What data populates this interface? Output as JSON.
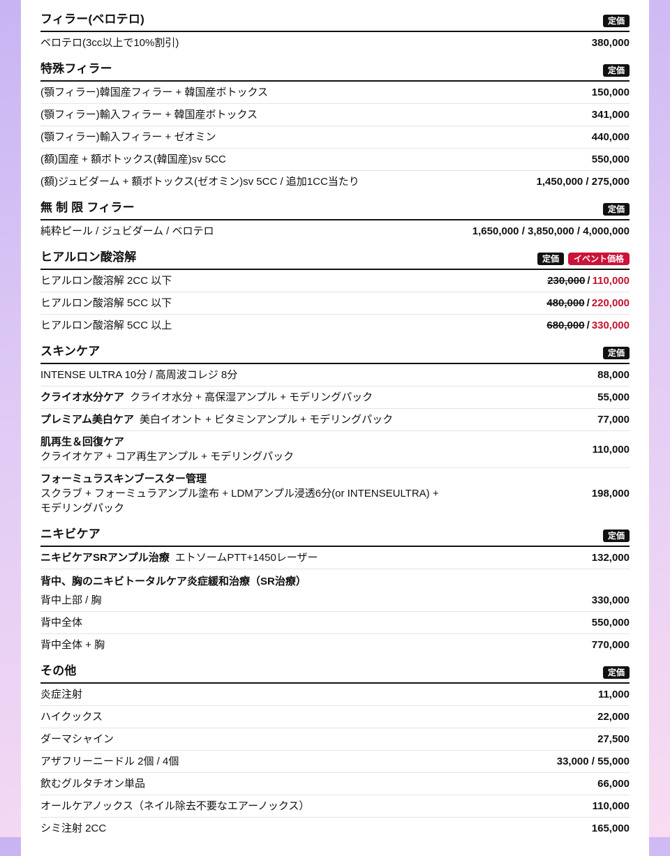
{
  "labels": {
    "price_separator": "/"
  },
  "colors": {
    "text": "#111111",
    "panel_bg": "#ffffff",
    "header_rule": "#111111",
    "row_divider": "#e4e4e4",
    "badge_black_bg": "#111111",
    "badge_red_bg": "#cb1238",
    "event_price": "#c41230",
    "page_gradient_top": "#c8b4f3",
    "page_gradient_bottom": "#f9dcf2"
  },
  "sections": [
    {
      "title": "フィラー(ベロテロ)",
      "badges": [
        {
          "label": "定価",
          "style": "black"
        }
      ],
      "rows": [
        {
          "label": "ベロテロ(3cc以上で10%割引)",
          "price": "380,000"
        }
      ]
    },
    {
      "title": "特殊フィラー",
      "badges": [
        {
          "label": "定価",
          "style": "black"
        }
      ],
      "rows": [
        {
          "label": "(顎フィラー)韓国産フィラー + 韓国産ボトックス",
          "price": "150,000"
        },
        {
          "label": "(顎フィラー)輸入フィラー + 韓国産ボトックス",
          "price": "341,000"
        },
        {
          "label": "(顎フィラー)輸入フィラー + ゼオミン",
          "price": "440,000"
        },
        {
          "label": "(額)国産 + 額ボトックス(韓国産)sv 5CC",
          "price": "550,000"
        },
        {
          "label": "(額)ジュビダーム + 額ボトックス(ゼオミン)sv 5CC / 追加1CC当たり",
          "price": "1,450,000 / 275,000"
        }
      ]
    },
    {
      "title": "無 制 限 フィラー",
      "badges": [
        {
          "label": "定価",
          "style": "black"
        }
      ],
      "rows": [
        {
          "label": "純粋ピール / ジュビダーム / ベロテロ",
          "price": "1,650,000 / 3,850,000 / 4,000,000"
        }
      ]
    },
    {
      "title": "ヒアルロン酸溶解",
      "badges": [
        {
          "label": "定価",
          "style": "black"
        },
        {
          "label": "イベント価格",
          "style": "red"
        }
      ],
      "rows": [
        {
          "label": "ヒアルロン酸溶解 2CC 以下",
          "old_price": "230,000",
          "event_price": "110,000"
        },
        {
          "label": "ヒアルロン酸溶解 5CC 以下",
          "old_price": "480,000",
          "event_price": "220,000"
        },
        {
          "label": "ヒアルロン酸溶解 5CC 以上",
          "old_price": "680,000",
          "event_price": "330,000"
        }
      ]
    },
    {
      "title": "スキンケア",
      "badges": [
        {
          "label": "定価",
          "style": "black"
        }
      ],
      "rows": [
        {
          "label": "INTENSE ULTRA 10分 / 高周波コレジ 8分",
          "price": "88,000"
        },
        {
          "bold": "クライオ水分ケア",
          "label": "クライオ水分 + 高保湿アンプル + モデリングパック",
          "price": "55,000"
        },
        {
          "bold": "プレミアム美白ケア",
          "label": "美白イオント + ビタミンアンプル + モデリングパック",
          "price": "77,000"
        },
        {
          "bold": "肌再生＆回復ケア",
          "sublines": [
            "クライオケア + コア再生アンプル + モデリングパック"
          ],
          "price": "110,000"
        },
        {
          "bold": "フォーミュラスキンブースター管理",
          "sublines": [
            "スクラブ + フォーミュラアンプル塗布 + LDMアンプル浸透6分(or INTENSEULTRA) +",
            "モデリングパック"
          ],
          "price": "198,000"
        }
      ]
    },
    {
      "title": "ニキビケア",
      "badges": [
        {
          "label": "定価",
          "style": "black"
        }
      ],
      "rows": [
        {
          "bold": "ニキビケアSRアンプル治療",
          "label": "エトソームPTT+1450レーザー",
          "price": "132,000"
        },
        {
          "group_title": "背中、胸のニキビトータルケア炎症緩和治療（SR治療）",
          "subrows": [
            {
              "label": "背中上部 / 胸",
              "price": "330,000"
            },
            {
              "label": "背中全体",
              "price": "550,000"
            },
            {
              "label": "背中全体 + 胸",
              "price": "770,000"
            }
          ]
        }
      ]
    },
    {
      "title": "その他",
      "badges": [
        {
          "label": "定価",
          "style": "black"
        }
      ],
      "rows": [
        {
          "label": "炎症注射",
          "price": "11,000"
        },
        {
          "label": "ハイクックス",
          "price": "22,000"
        },
        {
          "label": "ダーマシャイン",
          "price": "27,500"
        },
        {
          "label": "アザフリーニードル 2個 / 4個",
          "price": "33,000 / 55,000"
        },
        {
          "label": "飲むグルタチオン単品",
          "price": "66,000"
        },
        {
          "label": "オールケアノックス（ネイル除去不要なエアーノックス）",
          "price": "110,000"
        },
        {
          "label": "シミ注射 2CC",
          "price": "165,000"
        }
      ]
    }
  ]
}
